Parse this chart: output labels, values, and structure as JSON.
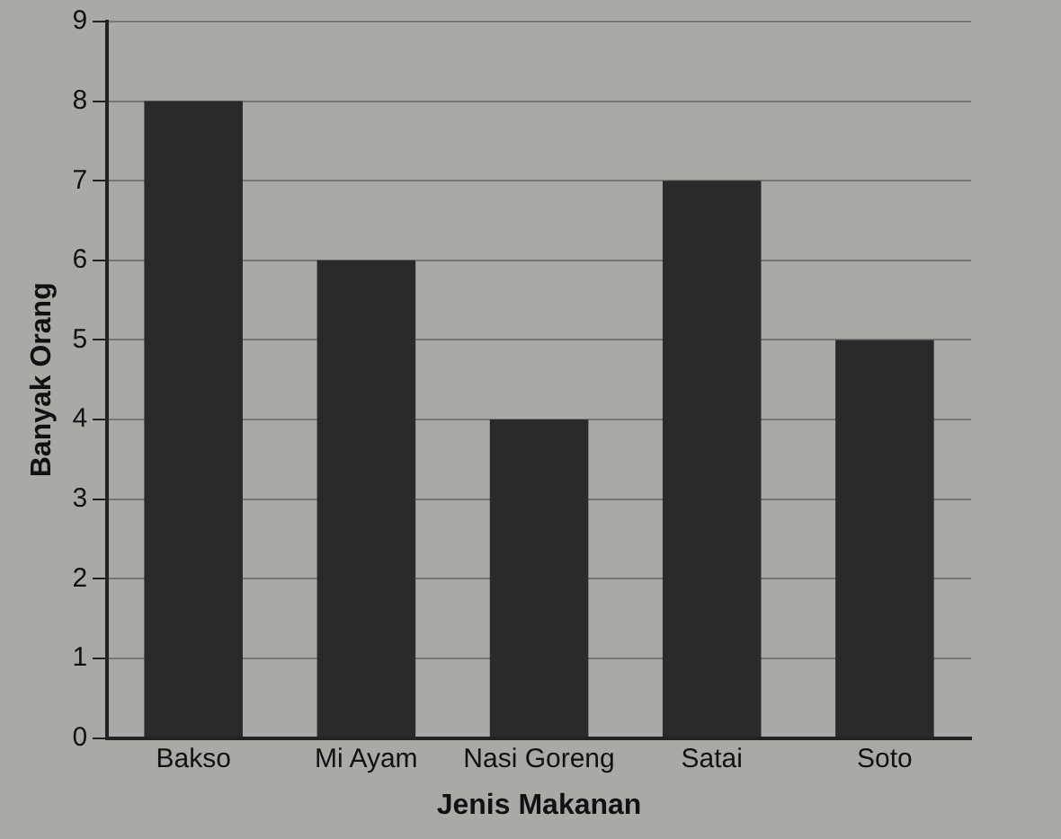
{
  "chart_data": {
    "type": "bar",
    "xlabel": "Jenis Makanan",
    "ylabel": "Banyak Orang",
    "categories": [
      "Bakso",
      "Mi Ayam",
      "Nasi Goreng",
      "Satai",
      "Soto"
    ],
    "values": [
      8,
      6,
      4,
      7,
      5
    ],
    "color": "#2a2a2a",
    "ylim": [
      0,
      9
    ],
    "yticks": [
      0,
      1,
      2,
      3,
      4,
      5,
      6,
      7,
      8,
      9
    ],
    "grid": "y"
  }
}
